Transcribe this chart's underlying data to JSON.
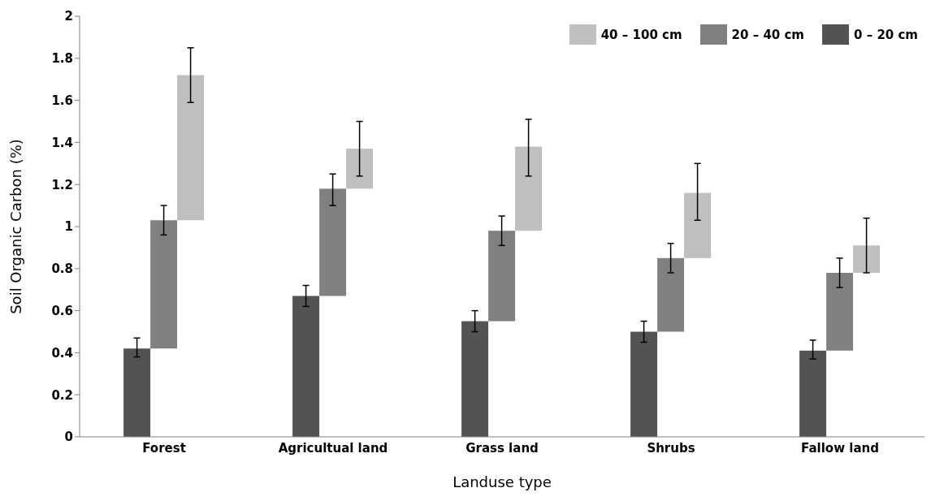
{
  "chart_data": {
    "type": "bar",
    "xlabel": "Landuse type",
    "ylabel": "Soil Organic Carbon  (%)",
    "categories": [
      "Forest",
      "Agricultual land",
      "Grass land",
      "Shrubs",
      "Fallow land"
    ],
    "series": [
      {
        "name": "0 – 20 cm",
        "color": "#535353",
        "values": [
          0.42,
          0.67,
          0.55,
          0.5,
          0.41
        ],
        "base": [
          0,
          0,
          0,
          0,
          0
        ],
        "errors": [
          [
            0.38,
            0.47
          ],
          [
            0.62,
            0.72
          ],
          [
            0.5,
            0.6
          ],
          [
            0.45,
            0.55
          ],
          [
            0.37,
            0.46
          ]
        ]
      },
      {
        "name": "20 – 40 cm",
        "color": "#808080",
        "values": [
          0.61,
          0.51,
          0.43,
          0.35,
          0.37
        ],
        "base": [
          0.42,
          0.67,
          0.55,
          0.5,
          0.41
        ],
        "errors": [
          [
            0.96,
            1.1
          ],
          [
            1.1,
            1.25
          ],
          [
            0.91,
            1.05
          ],
          [
            0.78,
            0.92
          ],
          [
            0.71,
            0.85
          ]
        ]
      },
      {
        "name": "40 – 100 cm",
        "color": "#bfbfbf",
        "values": [
          0.69,
          0.19,
          0.4,
          0.31,
          0.13
        ],
        "base": [
          1.03,
          1.18,
          0.98,
          0.85,
          0.78
        ],
        "errors": [
          [
            1.59,
            1.85
          ],
          [
            1.24,
            1.5
          ],
          [
            1.24,
            1.51
          ],
          [
            1.03,
            1.3
          ],
          [
            0.78,
            1.04
          ]
        ]
      }
    ],
    "ylim": [
      0,
      2
    ],
    "yticks": [
      0,
      0.2,
      0.4,
      0.6,
      0.8,
      1,
      1.2,
      1.4,
      1.6,
      1.8,
      2
    ],
    "grid": false,
    "legend": "top right"
  }
}
